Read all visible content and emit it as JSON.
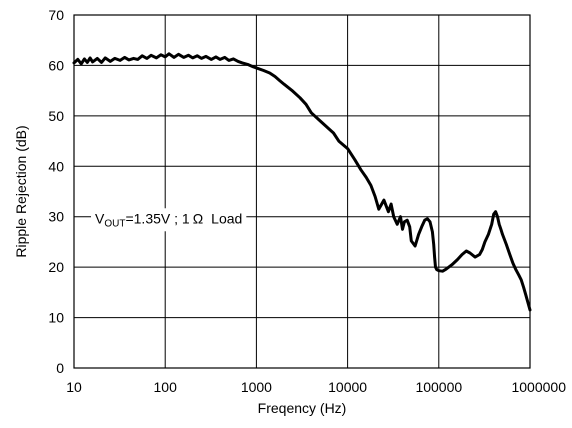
{
  "chart_data": {
    "type": "line",
    "title": "",
    "xlabel": "Freqency (Hz)",
    "ylabel": "Ripple Rejection (dB)",
    "x_scale": "log",
    "xlim": [
      10,
      1000000
    ],
    "ylim": [
      0,
      70
    ],
    "grid": true,
    "x_ticks": [
      "10",
      "100",
      "1000",
      "10000",
      "100000",
      "1000000"
    ],
    "y_ticks": [
      "0",
      "10",
      "20",
      "30",
      "40",
      "50",
      "60",
      "70"
    ],
    "annotation": {
      "prefix": "V",
      "subscript": "OUT",
      "suffix": "=1.35V ; 1",
      "omega": "Ω",
      "load": "Load"
    },
    "series": [
      {
        "color": "#000000",
        "x": [
          10,
          11,
          12,
          13,
          14,
          15,
          16,
          18,
          20,
          22,
          25,
          28,
          32,
          36,
          40,
          45,
          50,
          56,
          63,
          70,
          80,
          90,
          100,
          110,
          125,
          140,
          160,
          180,
          200,
          225,
          250,
          280,
          320,
          360,
          400,
          450,
          500,
          560,
          630,
          700,
          800,
          900,
          1000,
          1200,
          1400,
          1600,
          1800,
          2000,
          2500,
          3000,
          3500,
          4000,
          5000,
          6000,
          7000,
          8000,
          10000,
          12000,
          14000,
          16000,
          18000,
          20000,
          22000,
          25000,
          28000,
          30000,
          32000,
          35000,
          38000,
          40000,
          42000,
          45000,
          48000,
          50000,
          55000,
          60000,
          65000,
          70000,
          75000,
          80000,
          85000,
          88000,
          90000,
          92000,
          95000,
          100000,
          110000,
          120000,
          140000,
          160000,
          180000,
          200000,
          220000,
          250000,
          280000,
          300000,
          320000,
          350000,
          380000,
          400000,
          420000,
          440000,
          460000,
          480000,
          500000,
          550000,
          600000,
          650000,
          700000,
          750000,
          800000,
          850000,
          900000,
          1000000
        ],
        "y": [
          60.5,
          61.2,
          60.3,
          61.3,
          60.6,
          61.5,
          60.7,
          61.4,
          60.6,
          61.5,
          60.8,
          61.4,
          61.0,
          61.6,
          61.1,
          61.4,
          61.2,
          61.9,
          61.4,
          62.0,
          61.5,
          62.1,
          61.7,
          62.3,
          61.6,
          62.2,
          61.6,
          62.0,
          61.5,
          61.9,
          61.4,
          61.8,
          61.2,
          61.7,
          61.2,
          61.6,
          61.0,
          61.3,
          60.8,
          60.5,
          60.2,
          59.8,
          59.5,
          59.0,
          58.5,
          57.8,
          57.0,
          56.3,
          54.9,
          53.6,
          52.3,
          50.6,
          49.0,
          47.7,
          46.6,
          45.0,
          43.5,
          41.3,
          39.3,
          37.8,
          36.2,
          34.0,
          31.5,
          33.3,
          31.0,
          32.5,
          30.0,
          28.5,
          30.0,
          27.5,
          29.0,
          29.3,
          28.0,
          25.2,
          24.2,
          26.5,
          28.0,
          29.3,
          29.6,
          29.0,
          27.0,
          24.5,
          22.0,
          20.0,
          19.5,
          19.3,
          19.2,
          19.6,
          20.5,
          21.5,
          22.5,
          23.2,
          22.8,
          22.0,
          22.5,
          23.5,
          25.0,
          26.5,
          28.5,
          30.5,
          31.0,
          30.0,
          28.5,
          27.5,
          26.5,
          24.5,
          22.5,
          20.8,
          19.5,
          18.5,
          17.5,
          16.0,
          14.5,
          11.5
        ]
      }
    ]
  }
}
